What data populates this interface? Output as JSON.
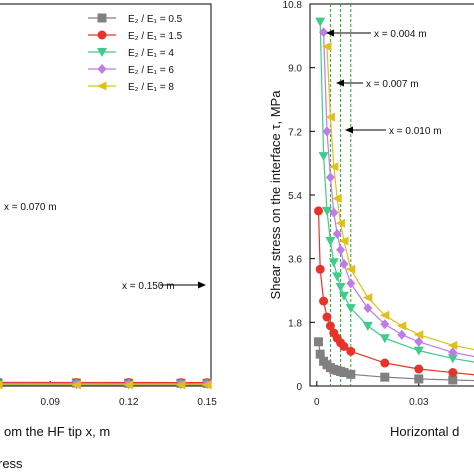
{
  "chart_data": [
    {
      "type": "line",
      "panel": "left",
      "xlim": [
        0.07,
        0.15
      ],
      "xticks": [
        "0.09",
        "0.12",
        "0.15"
      ],
      "xlabel": "om the HF tip x, m",
      "caption": "ress",
      "legend": {
        "position": "top-right",
        "entries": [
          "E₂ / E₁ = 0.5",
          "E₂ / E₁ = 1.5",
          "E₂ / E₁ = 4",
          "E₂ / E₁ = 6",
          "E₂ / E₁ = 8"
        ]
      },
      "annotations": [
        "x = 0.070 m",
        "x = 0.150 m"
      ],
      "series": [
        {
          "name": "E₂ / E₁ = 0.5",
          "color": "#808080",
          "marker": "square",
          "x": [
            0.07,
            0.1,
            0.12,
            0.14,
            0.15
          ],
          "y": [
            0.09,
            0.085,
            0.08,
            0.078,
            0.075
          ]
        },
        {
          "name": "E₂ / E₁ = 1.5",
          "color": "#e8332a",
          "marker": "circle",
          "x": [
            0.07,
            0.1,
            0.12,
            0.14,
            0.15
          ],
          "y": [
            0.105,
            0.1,
            0.098,
            0.096,
            0.095
          ]
        },
        {
          "name": "E₂ / E₁ = 4",
          "color": "#3dcc8a",
          "marker": "triangle-down",
          "x": [
            0.07,
            0.1,
            0.12,
            0.14,
            0.15
          ],
          "y": [
            0.05,
            0.048,
            0.046,
            0.045,
            0.045
          ]
        },
        {
          "name": "E₂ / E₁ = 6",
          "color": "#c07be8",
          "marker": "diamond",
          "x": [
            0.07,
            0.1,
            0.12,
            0.14,
            0.15
          ],
          "y": [
            0.072,
            0.07,
            0.068,
            0.067,
            0.066
          ]
        },
        {
          "name": "E₂ / E₁ = 8",
          "color": "#e0c01a",
          "marker": "triangle-left",
          "x": [
            0.07,
            0.1,
            0.12,
            0.14,
            0.15
          ],
          "y": [
            0.03,
            0.03,
            0.03,
            0.03,
            0.03
          ]
        }
      ]
    },
    {
      "type": "line",
      "panel": "right",
      "ylabel": "Shear stress on the interface τ, MPa",
      "xlabel": "Horizontal d",
      "xlim": [
        -0.002,
        0.048
      ],
      "ylim": [
        0,
        10.8
      ],
      "xticks": [
        "0",
        "0.03"
      ],
      "yticks": [
        "0",
        "1.8",
        "3.6",
        "5.4",
        "7.2",
        "9.0",
        "10.8"
      ],
      "annotations": [
        "x = 0.004 m",
        "x = 0.007 m",
        "x = 0.010 m"
      ],
      "vlines": [
        0.004,
        0.007,
        0.01
      ],
      "series": [
        {
          "name": "E₂ / E₁ = 0.5",
          "color": "#808080",
          "marker": "square",
          "x": [
            0.0005,
            0.001,
            0.002,
            0.003,
            0.004,
            0.005,
            0.006,
            0.007,
            0.008,
            0.01,
            0.02,
            0.03,
            0.04,
            0.048
          ],
          "y": [
            1.25,
            0.9,
            0.7,
            0.6,
            0.52,
            0.47,
            0.44,
            0.41,
            0.38,
            0.33,
            0.25,
            0.2,
            0.17,
            0.15
          ]
        },
        {
          "name": "E₂ / E₁ = 1.5",
          "color": "#e8332a",
          "marker": "circle",
          "x": [
            0.0005,
            0.001,
            0.002,
            0.003,
            0.004,
            0.005,
            0.006,
            0.007,
            0.008,
            0.01,
            0.02,
            0.03,
            0.04,
            0.048
          ],
          "y": [
            4.95,
            3.3,
            2.4,
            1.95,
            1.7,
            1.5,
            1.35,
            1.22,
            1.12,
            0.98,
            0.65,
            0.48,
            0.38,
            0.3
          ]
        },
        {
          "name": "E₂ / E₁ = 4",
          "color": "#3dcc8a",
          "marker": "triangle-down",
          "x": [
            0.001,
            0.002,
            0.003,
            0.004,
            0.005,
            0.006,
            0.007,
            0.008,
            0.01,
            0.015,
            0.02,
            0.03,
            0.04,
            0.048
          ],
          "y": [
            10.3,
            6.5,
            4.95,
            4.1,
            3.5,
            3.1,
            2.8,
            2.55,
            2.2,
            1.7,
            1.35,
            1.0,
            0.78,
            0.65
          ]
        },
        {
          "name": "E₂ / E₁ = 6",
          "color": "#c07be8",
          "marker": "diamond",
          "x": [
            0.002,
            0.003,
            0.004,
            0.005,
            0.006,
            0.007,
            0.008,
            0.01,
            0.015,
            0.02,
            0.025,
            0.03,
            0.04,
            0.048
          ],
          "y": [
            10.0,
            7.2,
            5.9,
            4.9,
            4.3,
            3.85,
            3.45,
            2.9,
            2.2,
            1.75,
            1.45,
            1.25,
            0.95,
            0.8
          ]
        },
        {
          "name": "E₂ / E₁ = 8",
          "color": "#e0c01a",
          "marker": "triangle-left",
          "x": [
            0.003,
            0.004,
            0.005,
            0.006,
            0.007,
            0.008,
            0.01,
            0.015,
            0.02,
            0.025,
            0.03,
            0.04,
            0.048
          ],
          "y": [
            9.6,
            7.6,
            6.2,
            5.3,
            4.6,
            4.1,
            3.3,
            2.5,
            2.0,
            1.7,
            1.45,
            1.15,
            1.0
          ]
        }
      ]
    }
  ]
}
